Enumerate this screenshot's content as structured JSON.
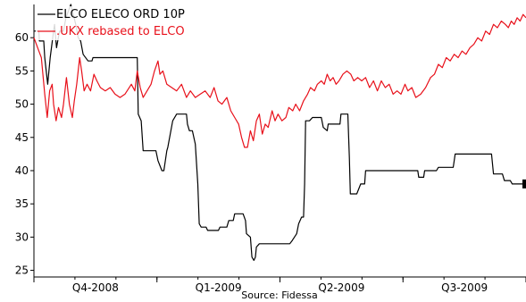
{
  "chart_data": {
    "type": "line",
    "title": "",
    "xlabel": "",
    "ylabel": "",
    "source": "Source: Fidessa",
    "x_categories": [
      "Q4-2008",
      "Q1-2009",
      "Q2-2009",
      "Q3-2009"
    ],
    "x_range": [
      0,
      1
    ],
    "ylim": [
      24,
      65
    ],
    "y_ticks": [
      25,
      30,
      35,
      40,
      45,
      50,
      55,
      60
    ],
    "grid": false,
    "legend_position": "top-left",
    "series": [
      {
        "name": "ELCO ELECO ORD 10P",
        "color": "#000000",
        "points": [
          [
            0.0,
            61.0
          ],
          [
            0.01,
            61.0
          ],
          [
            0.011,
            59.5
          ],
          [
            0.02,
            59.5
          ],
          [
            0.022,
            57.0
          ],
          [
            0.028,
            53.0
          ],
          [
            0.033,
            57.0
          ],
          [
            0.04,
            61.0
          ],
          [
            0.042,
            62.0
          ],
          [
            0.046,
            58.5
          ],
          [
            0.052,
            61.0
          ],
          [
            0.06,
            61.0
          ],
          [
            0.065,
            63.0
          ],
          [
            0.075,
            65.0
          ],
          [
            0.085,
            62.0
          ],
          [
            0.09,
            60.0
          ],
          [
            0.095,
            59.5
          ],
          [
            0.1,
            57.5
          ],
          [
            0.11,
            56.5
          ],
          [
            0.118,
            56.5
          ],
          [
            0.12,
            57.0
          ],
          [
            0.15,
            57.0
          ],
          [
            0.155,
            57.0
          ],
          [
            0.21,
            57.0
          ],
          [
            0.212,
            48.5
          ],
          [
            0.218,
            47.5
          ],
          [
            0.222,
            43.0
          ],
          [
            0.248,
            43.0
          ],
          [
            0.252,
            41.5
          ],
          [
            0.26,
            40.0
          ],
          [
            0.264,
            40.0
          ],
          [
            0.27,
            43.0
          ],
          [
            0.272,
            43.5
          ],
          [
            0.282,
            47.5
          ],
          [
            0.29,
            48.5
          ],
          [
            0.31,
            48.5
          ],
          [
            0.312,
            47.0
          ],
          [
            0.316,
            46.0
          ],
          [
            0.322,
            46.0
          ],
          [
            0.328,
            44.0
          ],
          [
            0.333,
            38.0
          ],
          [
            0.336,
            32.0
          ],
          [
            0.34,
            31.5
          ],
          [
            0.35,
            31.5
          ],
          [
            0.353,
            31.0
          ],
          [
            0.375,
            31.0
          ],
          [
            0.378,
            31.5
          ],
          [
            0.392,
            31.5
          ],
          [
            0.396,
            32.5
          ],
          [
            0.405,
            32.5
          ],
          [
            0.408,
            33.5
          ],
          [
            0.425,
            33.5
          ],
          [
            0.43,
            32.5
          ],
          [
            0.432,
            30.5
          ],
          [
            0.44,
            30.0
          ],
          [
            0.443,
            27.0
          ],
          [
            0.447,
            26.5
          ],
          [
            0.45,
            27.0
          ],
          [
            0.452,
            28.5
          ],
          [
            0.458,
            29.0
          ],
          [
            0.52,
            29.0
          ],
          [
            0.525,
            29.5
          ],
          [
            0.534,
            30.5
          ],
          [
            0.538,
            32.0
          ],
          [
            0.544,
            33.0
          ],
          [
            0.548,
            33.0
          ],
          [
            0.55,
            38.0
          ],
          [
            0.552,
            47.5
          ],
          [
            0.56,
            47.5
          ],
          [
            0.566,
            48.0
          ],
          [
            0.584,
            48.0
          ],
          [
            0.588,
            46.5
          ],
          [
            0.596,
            46.0
          ],
          [
            0.598,
            47.0
          ],
          [
            0.622,
            47.0
          ],
          [
            0.624,
            48.5
          ],
          [
            0.638,
            48.5
          ],
          [
            0.641,
            42.0
          ],
          [
            0.643,
            36.5
          ],
          [
            0.656,
            36.5
          ],
          [
            0.664,
            38.0
          ],
          [
            0.672,
            38.0
          ],
          [
            0.674,
            40.0
          ],
          [
            0.72,
            40.0
          ],
          [
            0.78,
            40.0
          ],
          [
            0.782,
            39.0
          ],
          [
            0.792,
            39.0
          ],
          [
            0.794,
            40.0
          ],
          [
            0.818,
            40.0
          ],
          [
            0.822,
            40.5
          ],
          [
            0.852,
            40.5
          ],
          [
            0.856,
            42.5
          ],
          [
            0.93,
            42.5
          ],
          [
            0.934,
            39.5
          ],
          [
            0.952,
            39.5
          ],
          [
            0.956,
            38.5
          ],
          [
            0.968,
            38.5
          ],
          [
            0.972,
            38.0
          ],
          [
            1.0,
            38.0
          ]
        ]
      },
      {
        "name": ".UKX rebased to ELCO",
        "color": "#e8101a",
        "points": [
          [
            0.0,
            60.0
          ],
          [
            0.01,
            58.0
          ],
          [
            0.015,
            57.0
          ],
          [
            0.022,
            51.5
          ],
          [
            0.027,
            48.0
          ],
          [
            0.032,
            52.0
          ],
          [
            0.037,
            53.0
          ],
          [
            0.04,
            50.0
          ],
          [
            0.045,
            47.5
          ],
          [
            0.05,
            49.5
          ],
          [
            0.056,
            48.0
          ],
          [
            0.06,
            50.0
          ],
          [
            0.066,
            54.0
          ],
          [
            0.072,
            50.0
          ],
          [
            0.078,
            48.0
          ],
          [
            0.082,
            50.5
          ],
          [
            0.087,
            53.0
          ],
          [
            0.093,
            57.0
          ],
          [
            0.097,
            55.0
          ],
          [
            0.102,
            52.0
          ],
          [
            0.108,
            53.0
          ],
          [
            0.115,
            52.0
          ],
          [
            0.122,
            54.5
          ],
          [
            0.128,
            53.5
          ],
          [
            0.135,
            52.5
          ],
          [
            0.145,
            52.0
          ],
          [
            0.155,
            52.5
          ],
          [
            0.165,
            51.5
          ],
          [
            0.175,
            51.0
          ],
          [
            0.185,
            51.5
          ],
          [
            0.198,
            53.0
          ],
          [
            0.205,
            52.0
          ],
          [
            0.21,
            55.0
          ],
          [
            0.216,
            52.5
          ],
          [
            0.222,
            51.0
          ],
          [
            0.23,
            52.0
          ],
          [
            0.238,
            53.0
          ],
          [
            0.245,
            55.0
          ],
          [
            0.252,
            56.5
          ],
          [
            0.256,
            54.5
          ],
          [
            0.262,
            55.0
          ],
          [
            0.27,
            53.0
          ],
          [
            0.28,
            52.5
          ],
          [
            0.29,
            52.0
          ],
          [
            0.3,
            53.0
          ],
          [
            0.31,
            51.0
          ],
          [
            0.318,
            52.0
          ],
          [
            0.328,
            51.0
          ],
          [
            0.338,
            51.5
          ],
          [
            0.348,
            52.0
          ],
          [
            0.358,
            51.0
          ],
          [
            0.366,
            52.5
          ],
          [
            0.374,
            50.5
          ],
          [
            0.382,
            50.0
          ],
          [
            0.392,
            51.0
          ],
          [
            0.4,
            49.0
          ],
          [
            0.408,
            48.0
          ],
          [
            0.416,
            47.0
          ],
          [
            0.422,
            45.0
          ],
          [
            0.428,
            43.5
          ],
          [
            0.434,
            43.5
          ],
          [
            0.44,
            46.0
          ],
          [
            0.446,
            44.5
          ],
          [
            0.452,
            47.5
          ],
          [
            0.458,
            48.5
          ],
          [
            0.464,
            45.5
          ],
          [
            0.47,
            47.0
          ],
          [
            0.476,
            46.5
          ],
          [
            0.484,
            49.0
          ],
          [
            0.49,
            47.5
          ],
          [
            0.496,
            48.5
          ],
          [
            0.504,
            47.5
          ],
          [
            0.512,
            48.0
          ],
          [
            0.518,
            49.5
          ],
          [
            0.526,
            49.0
          ],
          [
            0.532,
            50.0
          ],
          [
            0.54,
            49.0
          ],
          [
            0.548,
            50.5
          ],
          [
            0.556,
            51.5
          ],
          [
            0.562,
            52.5
          ],
          [
            0.57,
            52.0
          ],
          [
            0.576,
            53.0
          ],
          [
            0.584,
            53.5
          ],
          [
            0.59,
            53.0
          ],
          [
            0.596,
            54.5
          ],
          [
            0.602,
            53.5
          ],
          [
            0.608,
            54.0
          ],
          [
            0.614,
            53.0
          ],
          [
            0.62,
            53.5
          ],
          [
            0.628,
            54.5
          ],
          [
            0.636,
            55.0
          ],
          [
            0.644,
            54.5
          ],
          [
            0.65,
            53.5
          ],
          [
            0.658,
            54.0
          ],
          [
            0.666,
            53.5
          ],
          [
            0.674,
            54.0
          ],
          [
            0.682,
            52.5
          ],
          [
            0.69,
            53.5
          ],
          [
            0.698,
            52.0
          ],
          [
            0.706,
            53.5
          ],
          [
            0.714,
            52.5
          ],
          [
            0.722,
            53.0
          ],
          [
            0.73,
            51.5
          ],
          [
            0.738,
            52.0
          ],
          [
            0.746,
            51.5
          ],
          [
            0.754,
            53.0
          ],
          [
            0.76,
            52.0
          ],
          [
            0.768,
            52.5
          ],
          [
            0.776,
            51.0
          ],
          [
            0.786,
            51.5
          ],
          [
            0.796,
            52.5
          ],
          [
            0.806,
            54.0
          ],
          [
            0.814,
            54.5
          ],
          [
            0.822,
            56.0
          ],
          [
            0.83,
            55.5
          ],
          [
            0.838,
            57.0
          ],
          [
            0.846,
            56.5
          ],
          [
            0.854,
            57.5
          ],
          [
            0.862,
            57.0
          ],
          [
            0.87,
            58.0
          ],
          [
            0.878,
            57.5
          ],
          [
            0.886,
            58.5
          ],
          [
            0.894,
            59.0
          ],
          [
            0.902,
            60.0
          ],
          [
            0.91,
            59.5
          ],
          [
            0.918,
            61.0
          ],
          [
            0.926,
            60.5
          ],
          [
            0.934,
            62.0
          ],
          [
            0.942,
            61.5
          ],
          [
            0.95,
            62.5
          ],
          [
            0.958,
            62.0
          ],
          [
            0.964,
            61.5
          ],
          [
            0.97,
            62.5
          ],
          [
            0.976,
            62.0
          ],
          [
            0.982,
            63.0
          ],
          [
            0.988,
            62.5
          ],
          [
            0.994,
            63.5
          ],
          [
            1.0,
            63.0
          ]
        ]
      }
    ]
  }
}
